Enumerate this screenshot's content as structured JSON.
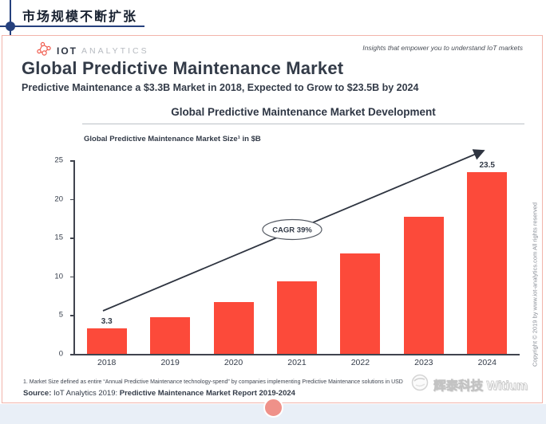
{
  "page": {
    "title": "市场规模不断扩张"
  },
  "header": {
    "logo": {
      "brand_primary": "IOT",
      "brand_secondary": "ANALYTICS"
    },
    "tagline": "Insights that empower you to understand IoT markets"
  },
  "report": {
    "title": "Global Predictive Maintenance Market",
    "subtitle": "Predictive Maintenance a $3.3B Market in 2018, Expected to Grow to $23.5B by 2024"
  },
  "chart_data": {
    "type": "bar",
    "title": "Global Predictive Maintenance Market Development",
    "axis_label": "Global Predictive Maintenance Market Size¹ in $B",
    "categories": [
      "2018",
      "2019",
      "2020",
      "2021",
      "2022",
      "2023",
      "2024"
    ],
    "values": [
      3.3,
      4.7,
      6.7,
      9.4,
      13.0,
      17.7,
      23.5
    ],
    "bar_labels": {
      "2018": "3.3",
      "2024": "23.5"
    },
    "ylim": [
      0,
      25
    ],
    "yticks": [
      0,
      5,
      10,
      15,
      20,
      25
    ],
    "annotation": "CAGR 39%",
    "bar_color": "#fc4a3a",
    "grid": false,
    "legend": "none"
  },
  "footer": {
    "footnote": "1. Market Size defined as entire “Annual Predictive Maintenance technology-spend” by companies implementing Predictive Maintenance solutions in USD",
    "source_label": "Source:",
    "source_normal": " IoT Analytics 2019: ",
    "source_bold": "Predictive Maintenance Market Report 2019-2024",
    "copyright": "Copyright © 2019 by www.iot-analytics.com All rights reserved",
    "watermark": "辉泰科技 Witium"
  },
  "colors": {
    "bar": "#fc4a3a",
    "accent_navy": "#25407d",
    "card_border": "#f2b4aa",
    "brand_coral": "#f05a4c",
    "bottom_strip": "#e9eff7",
    "salmon_dot": "#ef9189"
  }
}
